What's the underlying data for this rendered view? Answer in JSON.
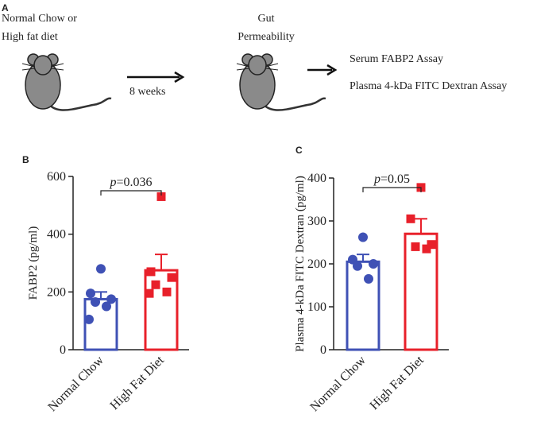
{
  "diagram": {
    "panel": "A",
    "start_text": [
      "Normal Chow or",
      "High fat diet"
    ],
    "arrow_text": "8 weeks",
    "middle_text": [
      "Gut",
      "Permeability"
    ],
    "assays": [
      "Serum FABP2 Assay",
      "Plasma 4-kDa FITC Dextran Assay"
    ]
  },
  "chart_data": [
    {
      "type": "bar",
      "panel": "B",
      "ylabel": "FABP2 (pg/ml)",
      "annotation": "p=0.036",
      "categories": [
        "Normal Chow",
        "High Fat Diet"
      ],
      "values": [
        175,
        275
      ],
      "errors": [
        25,
        55
      ],
      "points": [
        [
          280,
          195,
          175,
          165,
          150,
          105
        ],
        [
          530,
          270,
          250,
          225,
          200,
          195
        ]
      ],
      "colors": [
        "#3f51b5",
        "#e8202a"
      ],
      "markers": [
        "circle",
        "square"
      ],
      "ylim": [
        0,
        600
      ],
      "yticks": [
        0,
        200,
        400,
        600
      ]
    },
    {
      "type": "bar",
      "panel": "C",
      "ylabel": "Plasma 4-kDa FITC Dextran (pg/ml)",
      "annotation": "p=0.05",
      "categories": [
        "Normal Chow",
        "High Fat Diet"
      ],
      "values": [
        205,
        270
      ],
      "errors": [
        17,
        35
      ],
      "points": [
        [
          262,
          210,
          200,
          195,
          165
        ],
        [
          378,
          305,
          245,
          240,
          235
        ]
      ],
      "colors": [
        "#3f51b5",
        "#e8202a"
      ],
      "markers": [
        "circle",
        "square"
      ],
      "ylim": [
        0,
        400
      ],
      "yticks": [
        0,
        100,
        200,
        300,
        400
      ]
    }
  ]
}
